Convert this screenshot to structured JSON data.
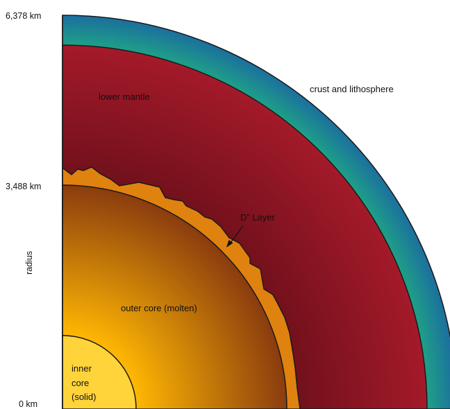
{
  "axis": {
    "label": "radius",
    "ticks": [
      {
        "label": "6,378 km",
        "value": 6378
      },
      {
        "label": "3,488 km",
        "value": 3488
      },
      {
        "label": "0 km",
        "value": 0
      }
    ]
  },
  "layers": {
    "crust": {
      "label": "crust and lithosphere",
      "color_outer": "#1c6f9e",
      "color_inner": "#1e9f87"
    },
    "lower_mantle": {
      "label": "lower mantle",
      "color_outer": "#a51a2a",
      "color_inner": "#5e0d16"
    },
    "d_layer": {
      "label": "D” Layer",
      "color": "#e0820f"
    },
    "outer_core": {
      "label": "outer core (molten)",
      "color_outer": "#ffb703",
      "color_inner": "#8a3c0e"
    },
    "inner_core": {
      "label_lines": [
        "inner",
        "core",
        "(solid)"
      ],
      "color": "#ffd43b"
    }
  }
}
